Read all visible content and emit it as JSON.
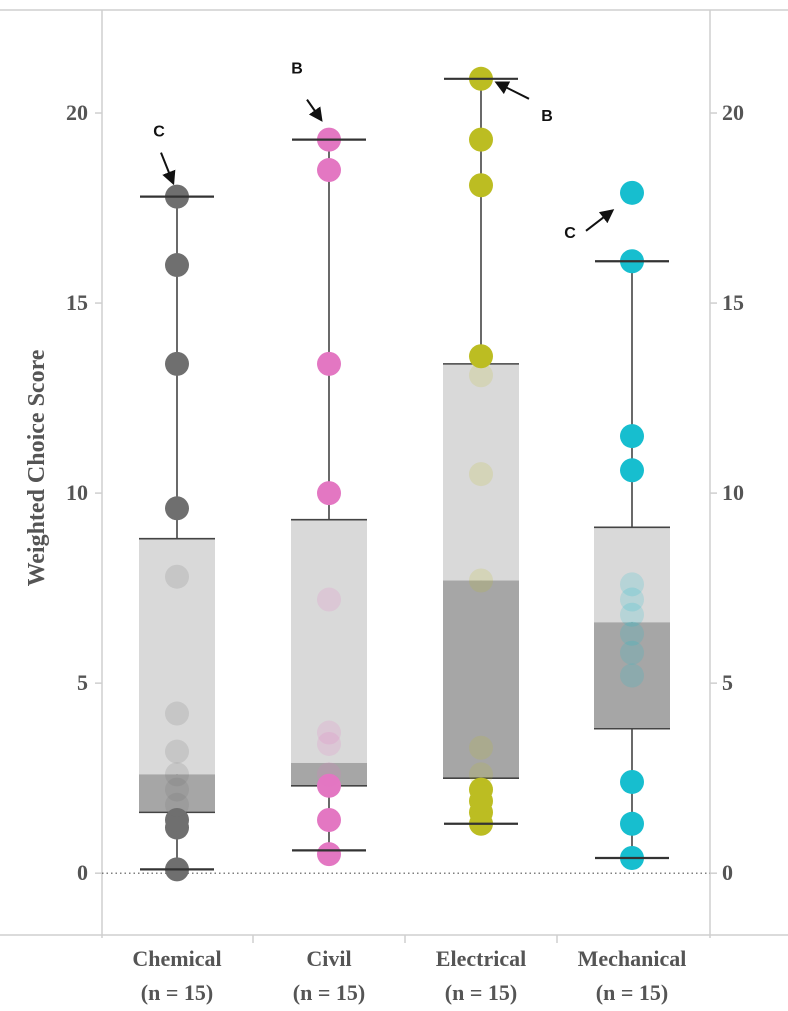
{
  "chart_data": {
    "type": "box",
    "ylabel": "Weighted Choice Score",
    "ylim": [
      -1.1,
      22
    ],
    "yticks": [
      0,
      5,
      10,
      15,
      20
    ],
    "ytick_labels": [
      "0",
      "5",
      "10",
      "15",
      "20"
    ],
    "categories": [
      {
        "name": "Chemical",
        "n_label": "(n = 15)"
      },
      {
        "name": "Civil",
        "n_label": "(n = 15)"
      },
      {
        "name": "Electrical",
        "n_label": "(n = 15)"
      },
      {
        "name": "Mechanical",
        "n_label": "(n = 15)"
      }
    ],
    "series": [
      {
        "color": "#6f6f6f",
        "whisker_low": 0.1,
        "q1": 1.6,
        "median": 2.6,
        "q3": 8.8,
        "whisker_high": 17.8,
        "points": [
          0.1,
          1.2,
          1.4,
          1.8,
          2.2,
          2.6,
          3.2,
          4.2,
          7.8,
          9.6,
          13.4,
          16.0,
          17.8
        ]
      },
      {
        "color": "#e377c2",
        "whisker_low": 0.6,
        "q1": 2.3,
        "median": 2.9,
        "q3": 9.3,
        "whisker_high": 19.3,
        "points": [
          0.5,
          1.4,
          2.3,
          2.6,
          3.4,
          3.7,
          7.2,
          10.0,
          13.4,
          18.5,
          19.3
        ]
      },
      {
        "color": "#bcbd22",
        "whisker_low": 1.3,
        "q1": 2.5,
        "median": 7.7,
        "q3": 13.4,
        "whisker_high": 20.9,
        "points": [
          1.3,
          1.6,
          1.9,
          2.2,
          2.6,
          3.3,
          7.7,
          10.5,
          13.1,
          13.6,
          18.1,
          19.3,
          20.9
        ]
      },
      {
        "color": "#17becf",
        "whisker_low": 0.4,
        "q1": 3.8,
        "median": 6.6,
        "q3": 9.1,
        "whisker_high": 16.1,
        "points": [
          0.4,
          1.3,
          2.4,
          5.2,
          5.8,
          6.3,
          6.8,
          7.2,
          7.6,
          10.6,
          11.5,
          16.1,
          17.9
        ]
      }
    ],
    "annotations": [
      {
        "text": "C",
        "category": 0,
        "value": 17.8
      },
      {
        "text": "B",
        "category": 1,
        "value": 19.3
      },
      {
        "text": "B",
        "category": 2,
        "value": 20.9
      },
      {
        "text": "C",
        "category": 3,
        "value": 17.9
      }
    ]
  }
}
